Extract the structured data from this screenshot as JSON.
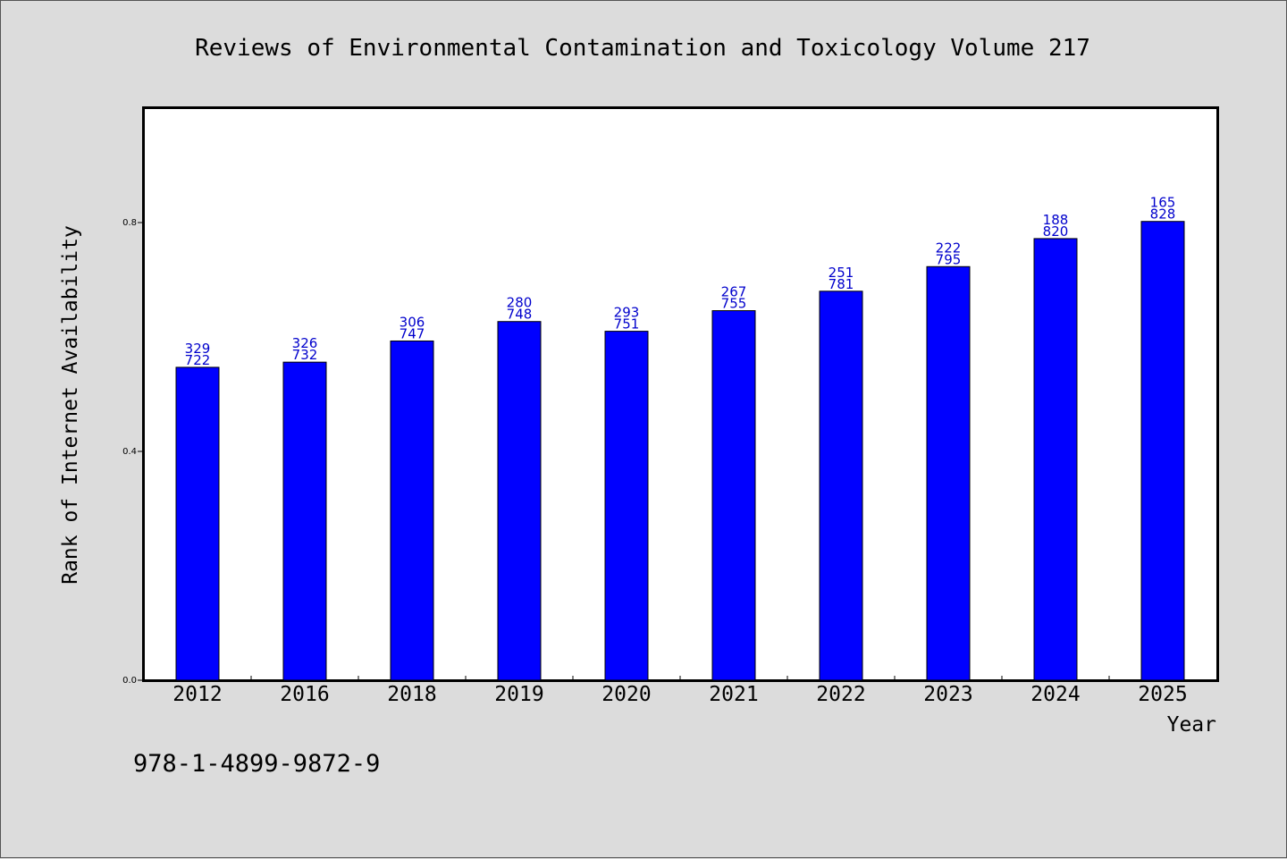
{
  "chart_data": {
    "type": "bar",
    "title": "Reviews of Environmental Contamination and Toxicology Volume 217",
    "xlabel": "Year",
    "ylabel": "Rank of Internet Availability",
    "footer": "978-1-4899-9872-9",
    "categories": [
      "2012",
      "2016",
      "2018",
      "2019",
      "2020",
      "2021",
      "2022",
      "2023",
      "2024",
      "2025"
    ],
    "values": [
      0.547,
      0.556,
      0.593,
      0.627,
      0.61,
      0.646,
      0.68,
      0.723,
      0.772,
      0.802
    ],
    "labels_top": [
      "329",
      "326",
      "306",
      "280",
      "293",
      "267",
      "251",
      "222",
      "188",
      "165"
    ],
    "labels_bottom": [
      "722",
      "732",
      "747",
      "748",
      "751",
      "755",
      "781",
      "795",
      "820",
      "828"
    ],
    "yticks": [
      0.0,
      0.4,
      0.8
    ],
    "ytick_labels": [
      "0.0",
      "0.4",
      "0.8"
    ],
    "ylim": [
      0,
      1.0
    ],
    "grid": false,
    "colors": {
      "bar": "#0000ff",
      "label": "#0000cc",
      "background": "#dcdcdc",
      "plot": "#ffffff"
    }
  }
}
